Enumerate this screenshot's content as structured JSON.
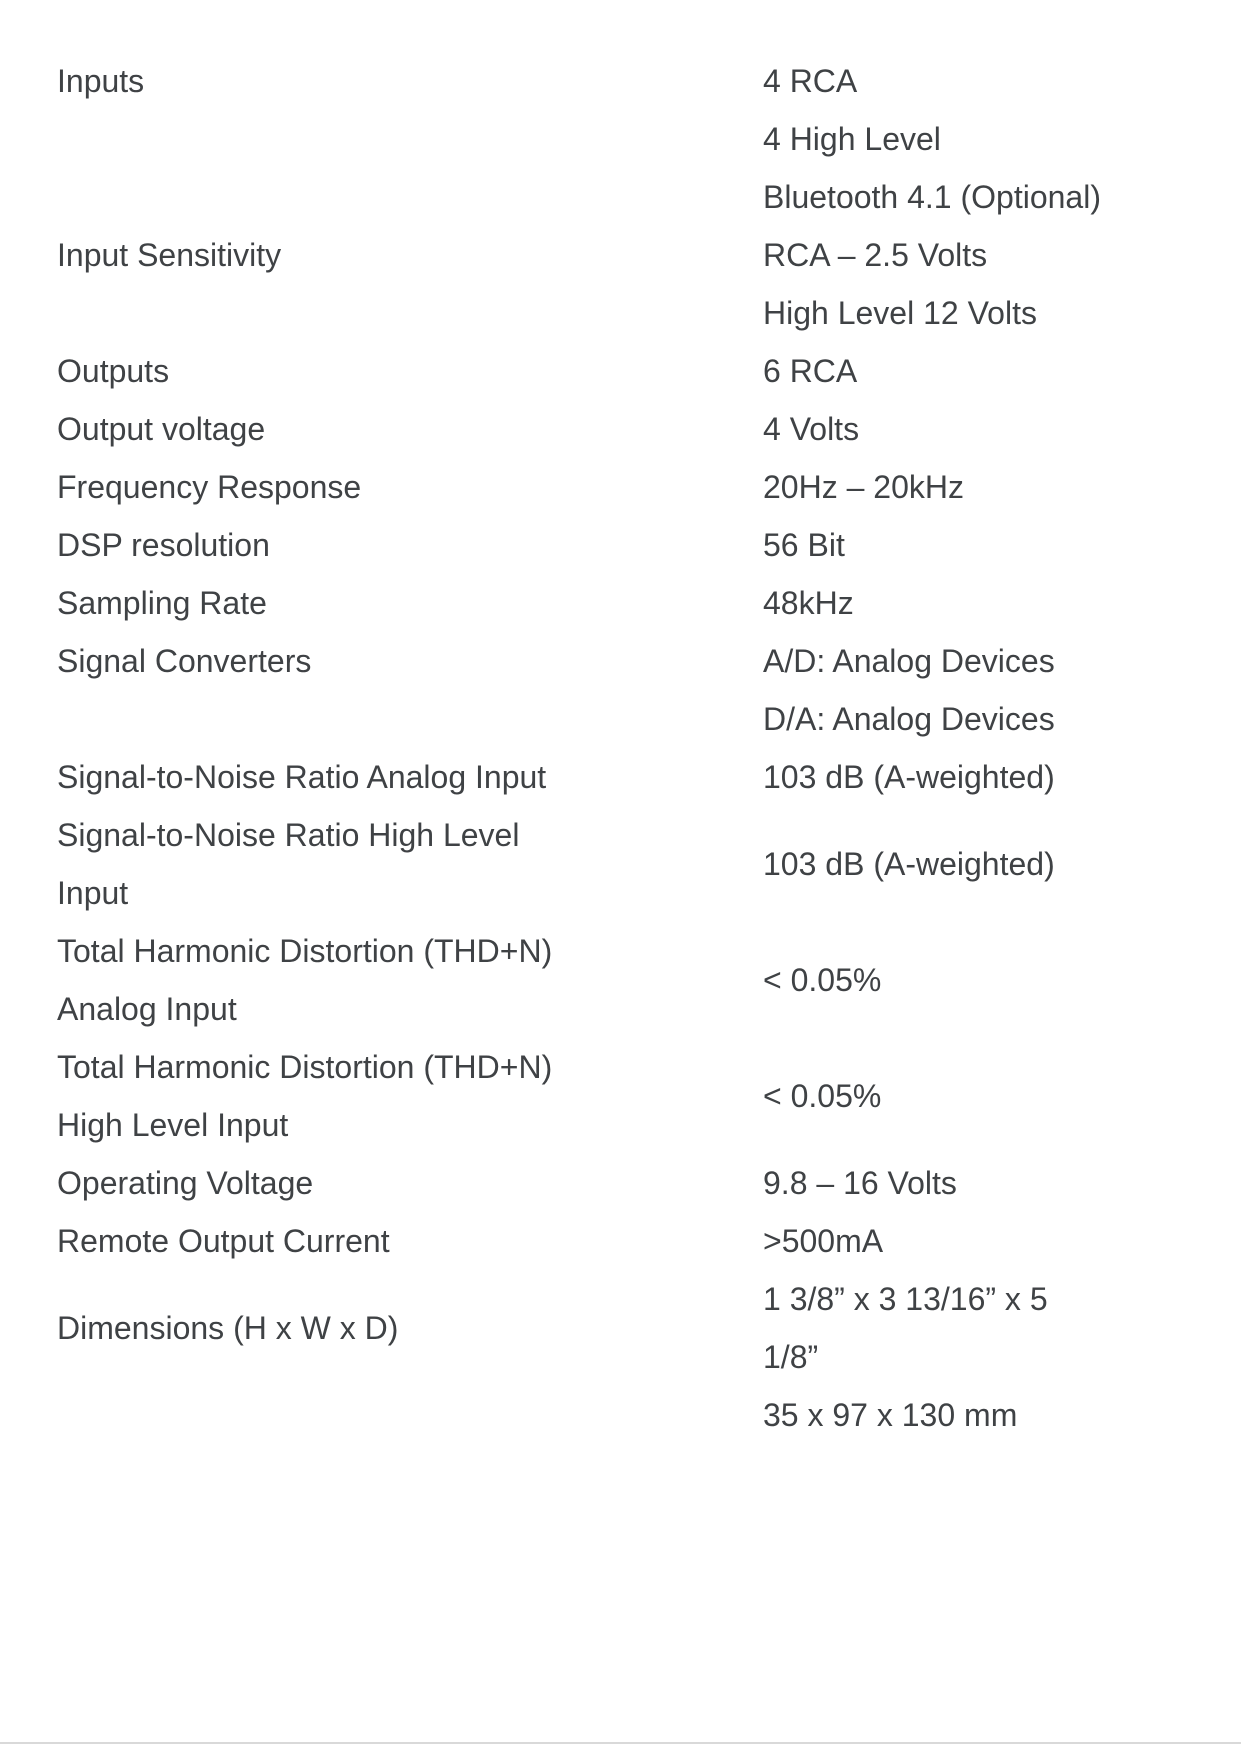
{
  "page": {
    "background_color": "#ffffff",
    "text_color": "#3f4245",
    "divider_color": "#d9d9d9"
  },
  "spec_table": {
    "rows": [
      {
        "label": "Inputs",
        "value": "4 RCA"
      },
      {
        "label": "",
        "value": "4 High Level"
      },
      {
        "label": "",
        "value": "Bluetooth 4.1 (Optional)"
      },
      {
        "label": "Input Sensitivity",
        "value": "RCA – 2.5 Volts"
      },
      {
        "label": "",
        "value": "High Level 12 Volts"
      },
      {
        "label": "Outputs",
        "value": "6 RCA"
      },
      {
        "label": "Output voltage",
        "value": "4 Volts"
      },
      {
        "label": "Frequency Response",
        "value": "20Hz – 20kHz"
      },
      {
        "label": "DSP resolution",
        "value": "56 Bit"
      },
      {
        "label": "Sampling Rate",
        "value": "48kHz"
      },
      {
        "label": "Signal Converters",
        "value": "A/D: Analog Devices"
      },
      {
        "label": "",
        "value": "D/A: Analog Devices"
      },
      {
        "label": "Signal-to-Noise Ratio Analog Input",
        "value": "103 dB (A-weighted)"
      },
      {
        "label": "Signal-to-Noise Ratio High Level Input",
        "value": "103 dB (A-weighted)"
      },
      {
        "label": "Total Harmonic Distortion (THD+N) Analog Input",
        "value": "< 0.05%"
      },
      {
        "label": "Total Harmonic Distortion (THD+N) High Level Input",
        "value": "< 0.05%"
      },
      {
        "label": "Operating Voltage",
        "value": "9.8 – 16 Volts"
      },
      {
        "label": "Remote Output Current",
        "value": ">500mA"
      },
      {
        "label": "Dimensions (H x W x D)",
        "value": "1 3/8” x 3 13/16” x 5 1/8”"
      },
      {
        "label": "",
        "value": "35 x 97 x 130 mm"
      }
    ]
  }
}
